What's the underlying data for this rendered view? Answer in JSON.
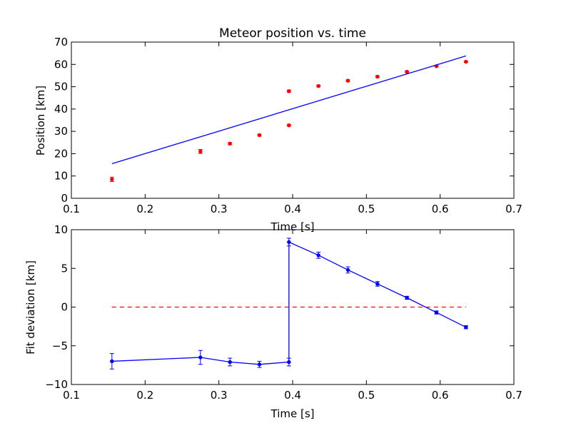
{
  "chart_data": [
    {
      "type": "scatter",
      "title": "Meteor position vs. time",
      "xlabel": "Time [s]",
      "ylabel": "Position [km]",
      "xlim": [
        0.1,
        0.7
      ],
      "ylim": [
        0,
        70
      ],
      "xticks": [
        0.1,
        0.2,
        0.3,
        0.4,
        0.5,
        0.6,
        0.7
      ],
      "yticks": [
        0,
        10,
        20,
        30,
        40,
        50,
        60,
        70
      ],
      "xtick_labels": [
        "0.1",
        "0.2",
        "0.3",
        "0.4",
        "0.5",
        "0.6",
        "0.7"
      ],
      "ytick_labels": [
        "0",
        "10",
        "20",
        "30",
        "40",
        "50",
        "60",
        "70"
      ],
      "grid": false,
      "series": [
        {
          "kind": "points_with_errorbars",
          "color": "#ff0000",
          "x": [
            0.155,
            0.275,
            0.315,
            0.355,
            0.395,
            0.395,
            0.435,
            0.475,
            0.515,
            0.555,
            0.595,
            0.635
          ],
          "y": [
            8.5,
            21.0,
            24.5,
            28.3,
            32.7,
            48.0,
            50.3,
            52.7,
            54.5,
            56.7,
            59.2,
            61.2
          ],
          "yerr": [
            1.0,
            0.9,
            0.5,
            0.4,
            0.4,
            0.5,
            0.4,
            0.4,
            0.4,
            0.4,
            0.3,
            0.3
          ]
        },
        {
          "kind": "fit_line",
          "color": "#0000ff",
          "x": [
            0.155,
            0.635
          ],
          "y": [
            15.5,
            63.8
          ]
        }
      ]
    },
    {
      "type": "line",
      "title": "",
      "xlabel": "Time [s]",
      "ylabel": "Fit deviation [km]",
      "xlim": [
        0.1,
        0.7
      ],
      "ylim": [
        -10,
        10
      ],
      "xticks": [
        0.1,
        0.2,
        0.3,
        0.4,
        0.5,
        0.6,
        0.7
      ],
      "yticks": [
        -10,
        -5,
        0,
        5,
        10
      ],
      "xtick_labels": [
        "0.1",
        "0.2",
        "0.3",
        "0.4",
        "0.5",
        "0.6",
        "0.7"
      ],
      "ytick_labels": [
        "−10",
        "−5",
        "0",
        "5",
        "10"
      ],
      "grid": false,
      "series": [
        {
          "kind": "line_with_errorbars",
          "color": "#0000ff",
          "x": [
            0.155,
            0.275,
            0.315,
            0.355,
            0.395,
            0.395,
            0.435,
            0.475,
            0.515,
            0.555,
            0.595,
            0.635
          ],
          "y": [
            -7.0,
            -6.5,
            -7.1,
            -7.4,
            -7.1,
            8.4,
            6.7,
            4.8,
            3.0,
            1.2,
            -0.7,
            -2.6
          ],
          "yerr": [
            1.0,
            0.9,
            0.5,
            0.4,
            0.5,
            0.5,
            0.4,
            0.4,
            0.3,
            0.2,
            0.2,
            0.2
          ]
        },
        {
          "kind": "reference_line",
          "color": "#ff0000",
          "dashed": true,
          "x": [
            0.155,
            0.635
          ],
          "y": [
            0,
            0
          ]
        }
      ]
    }
  ]
}
